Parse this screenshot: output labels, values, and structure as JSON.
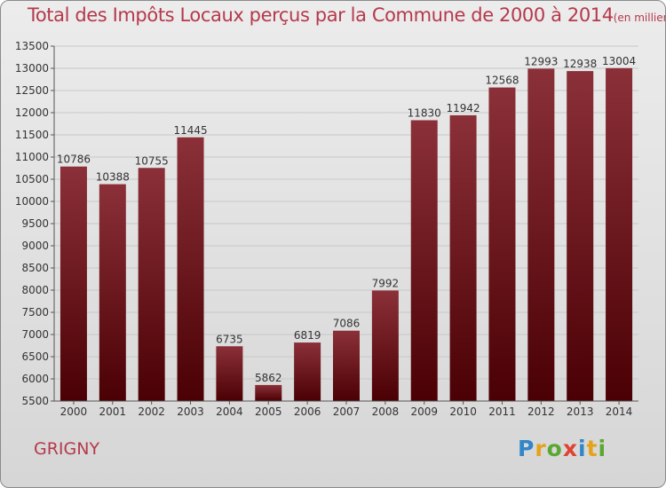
{
  "chart_data": {
    "type": "bar",
    "title": "Total des Impôts Locaux perçus par la Commune de 2000 à 2014",
    "unit_label": "(en milliers d'€)",
    "categories": [
      "2000",
      "2001",
      "2002",
      "2003",
      "2004",
      "2005",
      "2006",
      "2007",
      "2008",
      "2009",
      "2010",
      "2011",
      "2012",
      "2013",
      "2014"
    ],
    "values": [
      10786,
      10388,
      10755,
      11445,
      6735,
      5862,
      6819,
      7086,
      7992,
      11830,
      11942,
      12568,
      12993,
      12938,
      13004
    ],
    "ylim": [
      5500,
      13500
    ],
    "yticks": [
      5500,
      6000,
      6500,
      7000,
      7500,
      8000,
      8500,
      9000,
      9500,
      10000,
      10500,
      11000,
      11500,
      12000,
      12500,
      13000,
      13500
    ],
    "grid": true,
    "colors": {
      "bar_top": "#8b3038",
      "bar_bottom": "#4a0004",
      "title": "#b5394b",
      "grid": "#c8c8c8"
    }
  },
  "commune": "GRIGNY",
  "logo": {
    "p": "P",
    "r": "r",
    "o": "o",
    "x": "x",
    "i1": "i",
    "t": "t",
    "i2": "i"
  }
}
